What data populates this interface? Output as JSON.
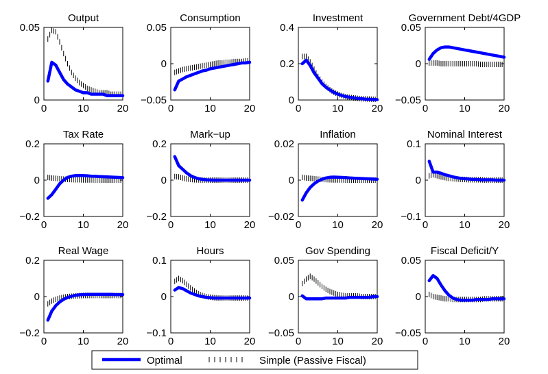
{
  "figure": {
    "legend": {
      "position": "bottom-center",
      "entries": [
        {
          "label": "Optimal",
          "color": "#0000ff",
          "style": "solid"
        },
        {
          "label": "Simple (Passive Fiscal)",
          "color": "#000000",
          "style": "vertical-ticks"
        }
      ]
    }
  },
  "chart_data": [
    {
      "type": "line",
      "title": "Output",
      "x": [
        1,
        2,
        3,
        4,
        5,
        6,
        7,
        8,
        9,
        10,
        11,
        12,
        13,
        14,
        15,
        16,
        17,
        18,
        19,
        20
      ],
      "ylim": [
        0,
        0.05
      ],
      "yticks": [
        "0",
        "0.05"
      ],
      "xlim": [
        0,
        20
      ],
      "xticks": [
        "0",
        "10",
        "20"
      ],
      "series": [
        {
          "name": "Optimal",
          "values": [
            0.013,
            0.026,
            0.024,
            0.019,
            0.014,
            0.011,
            0.009,
            0.007,
            0.006,
            0.005,
            0.005,
            0.004,
            0.004,
            0.004,
            0.004,
            0.003,
            0.003,
            0.003,
            0.003,
            0.003
          ]
        },
        {
          "name": "Simple (Passive Fiscal)",
          "values": [
            0.042,
            0.048,
            0.047,
            0.04,
            0.032,
            0.025,
            0.019,
            0.015,
            0.012,
            0.01,
            0.008,
            0.007,
            0.006,
            0.005,
            0.005,
            0.005,
            0.004,
            0.004,
            0.004,
            0.004
          ]
        }
      ]
    },
    {
      "type": "line",
      "title": "Consumption",
      "x": [
        1,
        2,
        3,
        4,
        5,
        6,
        7,
        8,
        9,
        10,
        11,
        12,
        13,
        14,
        15,
        16,
        17,
        18,
        19,
        20
      ],
      "ylim": [
        -0.05,
        0.05
      ],
      "yticks": [
        "−0.05",
        "0",
        "0.05"
      ],
      "xlim": [
        0,
        20
      ],
      "xticks": [
        "0",
        "10",
        "20"
      ],
      "series": [
        {
          "name": "Optimal",
          "values": [
            -0.036,
            -0.024,
            -0.021,
            -0.018,
            -0.016,
            -0.014,
            -0.012,
            -0.01,
            -0.009,
            -0.007,
            -0.006,
            -0.005,
            -0.004,
            -0.003,
            -0.002,
            -0.001,
            0.0,
            0.001,
            0.001,
            0.002
          ]
        },
        {
          "name": "Simple (Passive Fiscal)",
          "values": [
            -0.012,
            -0.01,
            -0.008,
            -0.007,
            -0.006,
            -0.005,
            -0.004,
            -0.003,
            -0.002,
            -0.001,
            0.0,
            0.001,
            0.001,
            0.002,
            0.002,
            0.003,
            0.003,
            0.003,
            0.004,
            0.004
          ]
        }
      ]
    },
    {
      "type": "line",
      "title": "Investment",
      "x": [
        1,
        2,
        3,
        4,
        5,
        6,
        7,
        8,
        9,
        10,
        11,
        12,
        13,
        14,
        15,
        16,
        17,
        18,
        19,
        20
      ],
      "ylim": [
        0,
        0.4
      ],
      "yticks": [
        "0",
        "0.2",
        "0.4"
      ],
      "xlim": [
        0,
        20
      ],
      "xticks": [
        "0",
        "10",
        "20"
      ],
      "series": [
        {
          "name": "Optimal",
          "values": [
            0.2,
            0.22,
            0.19,
            0.15,
            0.12,
            0.09,
            0.07,
            0.055,
            0.042,
            0.032,
            0.025,
            0.019,
            0.015,
            0.012,
            0.009,
            0.007,
            0.005,
            0.004,
            0.003,
            0.002
          ]
        },
        {
          "name": "Simple (Passive Fiscal)",
          "values": [
            0.24,
            0.24,
            0.21,
            0.17,
            0.13,
            0.1,
            0.075,
            0.057,
            0.043,
            0.033,
            0.025,
            0.019,
            0.015,
            0.012,
            0.009,
            0.007,
            0.006,
            0.005,
            0.004,
            0.003
          ]
        }
      ]
    },
    {
      "type": "line",
      "title": "Government Debt/4GDP",
      "x": [
        1,
        2,
        3,
        4,
        5,
        6,
        7,
        8,
        9,
        10,
        11,
        12,
        13,
        14,
        15,
        16,
        17,
        18,
        19,
        20
      ],
      "ylim": [
        -0.05,
        0.05
      ],
      "yticks": [
        "−0.05",
        "0",
        "0.05"
      ],
      "xlim": [
        0,
        20
      ],
      "xticks": [
        "0",
        "10",
        "20"
      ],
      "series": [
        {
          "name": "Optimal",
          "values": [
            0.006,
            0.014,
            0.019,
            0.022,
            0.023,
            0.023,
            0.022,
            0.021,
            0.02,
            0.019,
            0.018,
            0.017,
            0.016,
            0.015,
            0.014,
            0.013,
            0.012,
            0.011,
            0.01,
            0.009
          ]
        },
        {
          "name": "Simple (Passive Fiscal)",
          "values": [
            0.001,
            0.001,
            0.001,
            0.0,
            0.0,
            0.0,
            0.0,
            0.0,
            0.0,
            0.0,
            0.0,
            0.0,
            0.0,
            -0.001,
            -0.001,
            -0.001,
            -0.001,
            -0.001,
            -0.001,
            -0.001
          ]
        }
      ]
    },
    {
      "type": "line",
      "title": "Tax Rate",
      "x": [
        1,
        2,
        3,
        4,
        5,
        6,
        7,
        8,
        9,
        10,
        11,
        12,
        13,
        14,
        15,
        16,
        17,
        18,
        19,
        20
      ],
      "ylim": [
        -0.2,
        0.2
      ],
      "yticks": [
        "−0.2",
        "0",
        "0.2"
      ],
      "xlim": [
        0,
        20
      ],
      "xticks": [
        "0",
        "10",
        "20"
      ],
      "series": [
        {
          "name": "Optimal",
          "values": [
            -0.1,
            -0.08,
            -0.05,
            -0.02,
            0.0,
            0.015,
            0.022,
            0.025,
            0.026,
            0.025,
            0.024,
            0.022,
            0.021,
            0.02,
            0.019,
            0.018,
            0.017,
            0.016,
            0.015,
            0.014
          ]
        },
        {
          "name": "Simple (Passive Fiscal)",
          "values": [
            0.015,
            0.012,
            0.01,
            0.008,
            0.006,
            0.004,
            0.003,
            0.002,
            0.002,
            0.001,
            0.001,
            0.001,
            0.0,
            0.0,
            0.0,
            0.0,
            0.0,
            0.0,
            0.0,
            0.0
          ]
        }
      ]
    },
    {
      "type": "line",
      "title": "Mark−up",
      "x": [
        1,
        2,
        3,
        4,
        5,
        6,
        7,
        8,
        9,
        10,
        11,
        12,
        13,
        14,
        15,
        16,
        17,
        18,
        19,
        20
      ],
      "ylim": [
        -0.2,
        0.2
      ],
      "yticks": [
        "−0.2",
        "0",
        "0.2"
      ],
      "xlim": [
        0,
        20
      ],
      "xticks": [
        "0",
        "10",
        "20"
      ],
      "series": [
        {
          "name": "Optimal",
          "values": [
            0.13,
            0.08,
            0.06,
            0.04,
            0.025,
            0.015,
            0.008,
            0.004,
            0.002,
            0.001,
            0.0,
            0.0,
            0.0,
            0.0,
            0.0,
            0.0,
            0.0,
            0.0,
            0.0,
            0.0
          ]
        },
        {
          "name": "Simple (Passive Fiscal)",
          "values": [
            0.02,
            0.018,
            0.012,
            0.007,
            0.004,
            0.002,
            0.001,
            0.0,
            0.0,
            0.0,
            0.0,
            0.0,
            0.0,
            0.0,
            0.0,
            0.0,
            0.0,
            0.0,
            0.0,
            0.0
          ]
        }
      ]
    },
    {
      "type": "line",
      "title": "Inflation",
      "x": [
        1,
        2,
        3,
        4,
        5,
        6,
        7,
        8,
        9,
        10,
        11,
        12,
        13,
        14,
        15,
        16,
        17,
        18,
        19,
        20
      ],
      "ylim": [
        -0.02,
        0.02
      ],
      "yticks": [
        "−0.02",
        "0",
        "0.02"
      ],
      "xlim": [
        0,
        20
      ],
      "xticks": [
        "0",
        "10",
        "20"
      ],
      "series": [
        {
          "name": "Optimal",
          "values": [
            -0.011,
            -0.007,
            -0.004,
            -0.002,
            -0.0005,
            0.0005,
            0.0012,
            0.0016,
            0.0017,
            0.0016,
            0.0015,
            0.0014,
            0.0012,
            0.0011,
            0.001,
            0.0009,
            0.0008,
            0.0007,
            0.0006,
            0.0005
          ]
        },
        {
          "name": "Simple (Passive Fiscal)",
          "values": [
            0.0015,
            0.0012,
            0.001,
            0.0008,
            0.0006,
            0.0004,
            0.0003,
            0.0002,
            0.0001,
            0.0001,
            0.0001,
            0.0,
            0.0,
            0.0,
            0.0,
            0.0,
            0.0,
            0.0,
            0.0,
            0.0
          ]
        }
      ]
    },
    {
      "type": "line",
      "title": "Nominal Interest",
      "x": [
        1,
        2,
        3,
        4,
        5,
        6,
        7,
        8,
        9,
        10,
        11,
        12,
        13,
        14,
        15,
        16,
        17,
        18,
        19,
        20
      ],
      "ylim": [
        -0.1,
        0.1
      ],
      "yticks": [
        "−0.1",
        "0",
        "0.1"
      ],
      "xlim": [
        0,
        20
      ],
      "xticks": [
        "0",
        "10",
        "20"
      ],
      "series": [
        {
          "name": "Optimal",
          "values": [
            0.052,
            0.022,
            0.022,
            0.019,
            0.015,
            0.012,
            0.009,
            0.007,
            0.005,
            0.004,
            0.003,
            0.002,
            0.002,
            0.001,
            0.001,
            0.001,
            0.001,
            0.0,
            0.0,
            0.0
          ]
        },
        {
          "name": "Simple (Passive Fiscal)",
          "values": [
            0.012,
            0.015,
            0.012,
            0.009,
            0.007,
            0.005,
            0.004,
            0.003,
            0.002,
            0.002,
            0.001,
            0.001,
            0.001,
            0.001,
            0.0,
            0.0,
            0.0,
            0.0,
            0.0,
            0.0
          ]
        }
      ]
    },
    {
      "type": "line",
      "title": "Real Wage",
      "x": [
        1,
        2,
        3,
        4,
        5,
        6,
        7,
        8,
        9,
        10,
        11,
        12,
        13,
        14,
        15,
        16,
        17,
        18,
        19,
        20
      ],
      "ylim": [
        -0.2,
        0.2
      ],
      "yticks": [
        "−0.2",
        "0",
        "0.2"
      ],
      "xlim": [
        0,
        20
      ],
      "xticks": [
        "0",
        "10",
        "20"
      ],
      "series": [
        {
          "name": "Optimal",
          "values": [
            -0.13,
            -0.08,
            -0.05,
            -0.03,
            -0.015,
            -0.005,
            0.002,
            0.007,
            0.01,
            0.011,
            0.012,
            0.012,
            0.012,
            0.012,
            0.012,
            0.012,
            0.012,
            0.011,
            0.011,
            0.011
          ]
        },
        {
          "name": "Simple (Passive Fiscal)",
          "values": [
            -0.04,
            -0.025,
            -0.015,
            -0.008,
            -0.003,
            0.0,
            0.002,
            0.004,
            0.005,
            0.006,
            0.006,
            0.006,
            0.006,
            0.006,
            0.006,
            0.006,
            0.006,
            0.006,
            0.006,
            0.006
          ]
        }
      ]
    },
    {
      "type": "line",
      "title": "Hours",
      "x": [
        1,
        2,
        3,
        4,
        5,
        6,
        7,
        8,
        9,
        10,
        11,
        12,
        13,
        14,
        15,
        16,
        17,
        18,
        19,
        20
      ],
      "ylim": [
        -0.1,
        0.1
      ],
      "yticks": [
        "−0.1",
        "0",
        "0.1"
      ],
      "xlim": [
        0,
        20
      ],
      "xticks": [
        "0",
        "10",
        "20"
      ],
      "series": [
        {
          "name": "Optimal",
          "values": [
            0.018,
            0.025,
            0.022,
            0.016,
            0.01,
            0.006,
            0.002,
            0.0,
            -0.002,
            -0.003,
            -0.004,
            -0.004,
            -0.004,
            -0.004,
            -0.004,
            -0.004,
            -0.004,
            -0.004,
            -0.004,
            -0.004
          ]
        },
        {
          "name": "Simple (Passive Fiscal)",
          "values": [
            0.042,
            0.05,
            0.044,
            0.034,
            0.024,
            0.015,
            0.008,
            0.003,
            0.0,
            -0.002,
            -0.003,
            -0.004,
            -0.004,
            -0.004,
            -0.004,
            -0.004,
            -0.004,
            -0.004,
            -0.004,
            -0.004
          ]
        }
      ]
    },
    {
      "type": "line",
      "title": "Gov Spending",
      "x": [
        1,
        2,
        3,
        4,
        5,
        6,
        7,
        8,
        9,
        10,
        11,
        12,
        13,
        14,
        15,
        16,
        17,
        18,
        19,
        20
      ],
      "ylim": [
        -0.05,
        0.05
      ],
      "yticks": [
        "−0.05",
        "0",
        "0.05"
      ],
      "xlim": [
        0,
        20
      ],
      "xticks": [
        "0",
        "10",
        "20"
      ],
      "series": [
        {
          "name": "Optimal",
          "values": [
            0.001,
            -0.003,
            -0.003,
            -0.003,
            -0.003,
            -0.003,
            -0.002,
            -0.002,
            -0.002,
            -0.002,
            -0.002,
            -0.002,
            -0.001,
            -0.001,
            -0.001,
            -0.001,
            -0.001,
            -0.001,
            0.0,
            0.0
          ]
        },
        {
          "name": "Simple (Passive Fiscal)",
          "values": [
            0.018,
            0.024,
            0.028,
            0.024,
            0.019,
            0.014,
            0.01,
            0.007,
            0.005,
            0.003,
            0.002,
            0.001,
            0.001,
            0.001,
            0.001,
            0.0,
            0.0,
            0.0,
            0.0,
            0.0
          ]
        }
      ]
    },
    {
      "type": "line",
      "title": "Fiscal Deficit/Y",
      "x": [
        1,
        2,
        3,
        4,
        5,
        6,
        7,
        8,
        9,
        10,
        11,
        12,
        13,
        14,
        15,
        16,
        17,
        18,
        19,
        20
      ],
      "ylim": [
        -0.05,
        0.05
      ],
      "yticks": [
        "−0.05",
        "0",
        "0.05"
      ],
      "xlim": [
        0,
        20
      ],
      "xticks": [
        "0",
        "10",
        "20"
      ],
      "series": [
        {
          "name": "Optimal",
          "values": [
            0.022,
            0.029,
            0.025,
            0.016,
            0.008,
            0.002,
            -0.002,
            -0.004,
            -0.005,
            -0.005,
            -0.005,
            -0.005,
            -0.004,
            -0.004,
            -0.004,
            -0.004,
            -0.003,
            -0.003,
            -0.003,
            -0.003
          ]
        },
        {
          "name": "Simple (Passive Fiscal)",
          "values": [
            0.003,
            0.0,
            -0.001,
            -0.002,
            -0.003,
            -0.003,
            -0.004,
            -0.004,
            -0.004,
            -0.004,
            -0.004,
            -0.004,
            -0.004,
            -0.004,
            -0.003,
            -0.003,
            -0.003,
            -0.003,
            -0.003,
            -0.003
          ]
        }
      ]
    }
  ]
}
